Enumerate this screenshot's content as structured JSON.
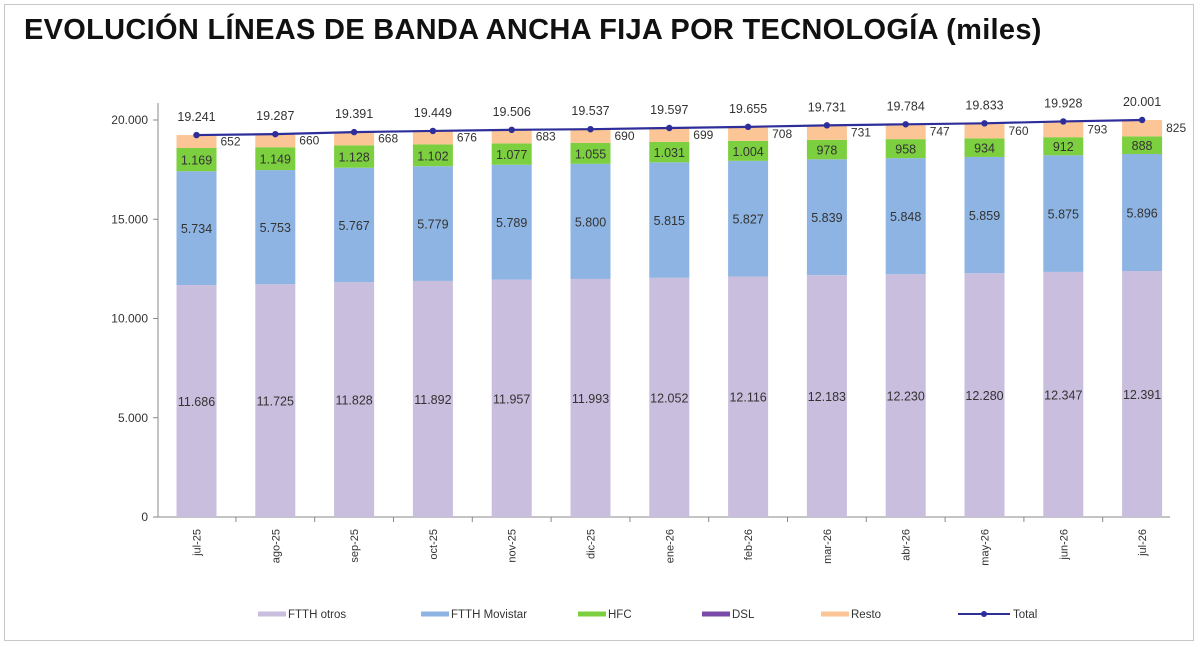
{
  "chart_data": {
    "type": "bar",
    "stacked": true,
    "title": "EVOLUCIÓN LÍNEAS DE BANDA ANCHA FIJA POR TECNOLOGÍA (miles)",
    "categories": [
      "jul-25",
      "ago-25",
      "sep-25",
      "oct-25",
      "nov-25",
      "dic-25",
      "ene-26",
      "feb-26",
      "mar-26",
      "abr-26",
      "may-26",
      "jun-26",
      "jul-26"
    ],
    "ylim": [
      0,
      20000
    ],
    "yticks": [
      "0",
      "5.000",
      "10.000",
      "15.000",
      "20.000"
    ],
    "ytick_values": [
      0,
      5000,
      10000,
      15000,
      20000
    ],
    "grid": false,
    "legend_position": "bottom",
    "series": [
      {
        "name": "FTTH otros",
        "color": "#c9bedd",
        "values": [
          11686,
          11725,
          11828,
          11892,
          11957,
          11993,
          12052,
          12116,
          12183,
          12230,
          12280,
          12347,
          12391
        ],
        "labels": [
          "11.686",
          "11.725",
          "11.828",
          "11.892",
          "11.957",
          "11.993",
          "12.052",
          "12.116",
          "12.183",
          "12.230",
          "12.280",
          "12.347",
          "12.391"
        ]
      },
      {
        "name": "FTTH Movistar",
        "color": "#8eb4e3",
        "values": [
          5734,
          5753,
          5767,
          5779,
          5789,
          5800,
          5815,
          5827,
          5839,
          5848,
          5859,
          5875,
          5896
        ],
        "labels": [
          "5.734",
          "5.753",
          "5.767",
          "5.779",
          "5.789",
          "5.800",
          "5.815",
          "5.827",
          "5.839",
          "5.848",
          "5.859",
          "5.875",
          "5.896"
        ]
      },
      {
        "name": "HFC",
        "color": "#7ccf3e",
        "values": [
          1169,
          1149,
          1128,
          1102,
          1077,
          1055,
          1031,
          1004,
          978,
          958,
          934,
          912,
          888
        ],
        "labels": [
          "1.169",
          "1.149",
          "1.128",
          "1.102",
          "1.077",
          "1.055",
          "1.031",
          "1.004",
          "978",
          "958",
          "934",
          "912",
          "888"
        ]
      },
      {
        "name": "DSL",
        "color": "#7a4aa8",
        "values": [
          0,
          0,
          0,
          0,
          0,
          0,
          0,
          0,
          0,
          0,
          0,
          0,
          0
        ],
        "labels": []
      },
      {
        "name": "Resto",
        "color": "#fbc595",
        "values": [
          652,
          660,
          668,
          676,
          683,
          690,
          699,
          708,
          731,
          747,
          760,
          793,
          825
        ],
        "labels": [
          "652",
          "660",
          "668",
          "676",
          "683",
          "690",
          "699",
          "708",
          "731",
          "747",
          "760",
          "793",
          "825"
        ]
      }
    ],
    "total": {
      "name": "Total",
      "color": "#2e2e9a",
      "values": [
        19241,
        19287,
        19391,
        19449,
        19506,
        19537,
        19597,
        19655,
        19731,
        19784,
        19833,
        19928,
        20001
      ],
      "labels": [
        "19.241",
        "19.287",
        "19.391",
        "19.449",
        "19.506",
        "19.537",
        "19.597",
        "19.655",
        "19.731",
        "19.784",
        "19.833",
        "19.928",
        "20.001"
      ]
    }
  }
}
